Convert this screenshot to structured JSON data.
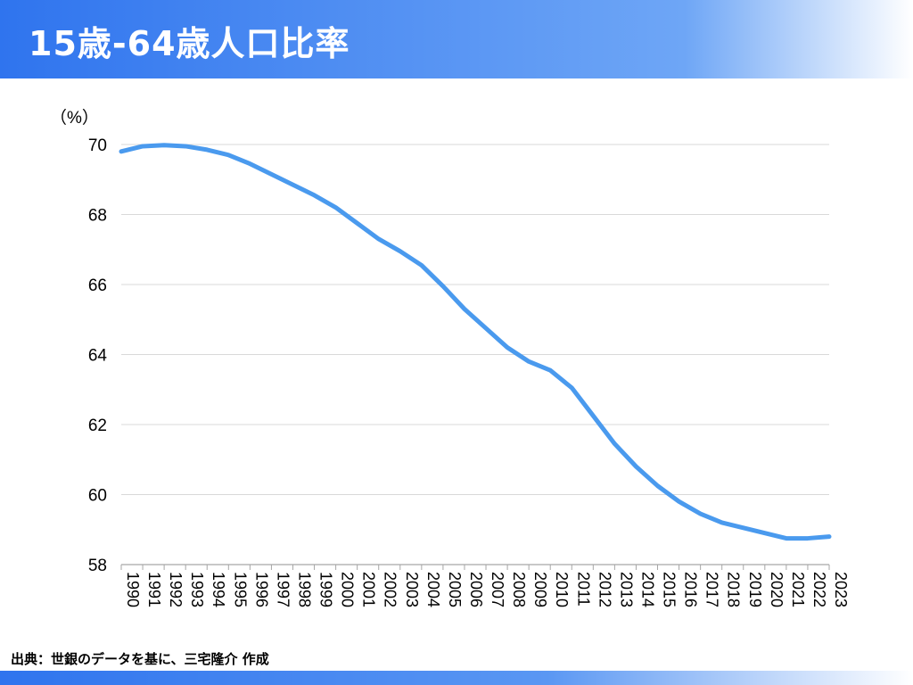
{
  "header": {
    "title": "15歳-64歳人口比率"
  },
  "footer": {
    "source": "出典：世銀のデータを基に、三宅隆介 作成"
  },
  "colors": {
    "line": "#4a9aee",
    "header_start": "#2f74ee",
    "header_end": "#ffffff",
    "grid": "#d9d9d9",
    "axis": "#a6a6a6"
  },
  "chart_data": {
    "type": "line",
    "title": "15歳-64歳人口比率",
    "xlabel": "",
    "ylabel": "（%）",
    "ylim": [
      58,
      70
    ],
    "yticks": [
      70,
      68,
      66,
      64,
      62,
      60,
      58
    ],
    "grid": true,
    "x": [
      "1990",
      "1991",
      "1992",
      "1993",
      "1994",
      "1995",
      "1996",
      "1997",
      "1998",
      "1999",
      "2000",
      "2001",
      "2002",
      "2003",
      "2004",
      "2005",
      "2006",
      "2007",
      "2008",
      "2009",
      "2010",
      "2011",
      "2012",
      "2013",
      "2014",
      "2015",
      "2016",
      "2017",
      "2018",
      "2019",
      "2020",
      "2021",
      "2022",
      "2023"
    ],
    "series": [
      {
        "values": [
          69.8,
          69.95,
          69.98,
          69.95,
          69.85,
          69.7,
          69.45,
          69.15,
          68.85,
          68.55,
          68.2,
          67.75,
          67.3,
          66.95,
          66.55,
          65.95,
          65.3,
          64.75,
          64.2,
          63.8,
          63.55,
          63.05,
          62.25,
          61.45,
          60.8,
          60.25,
          59.8,
          59.45,
          59.2,
          59.05,
          58.9,
          58.75,
          58.75,
          58.8
        ]
      }
    ]
  }
}
